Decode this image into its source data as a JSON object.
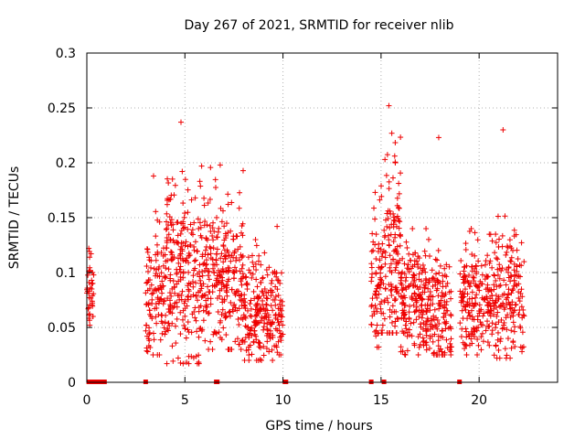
{
  "chart_data": {
    "type": "scatter",
    "title": "Day 267 of 2021, SRMTID for receiver nlib",
    "xlabel": "GPS time / hours",
    "ylabel": "SRMTID / TECUs",
    "xlim": [
      0,
      24
    ],
    "ylim": [
      0,
      0.3
    ],
    "xticks": [
      0,
      5,
      10,
      15,
      20
    ],
    "xtick_labels": [
      "0",
      "5",
      "10",
      "15",
      "20"
    ],
    "yticks": [
      0,
      0.05,
      0.1,
      0.15,
      0.2,
      0.25,
      0.3
    ],
    "ytick_labels": [
      "0",
      "0.05",
      "0.1",
      "0.15",
      "0.2",
      "0.25",
      "0.3"
    ],
    "grid": true,
    "marker": "+",
    "series_color": "#ee0000",
    "series": [
      {
        "name": "SRMTID",
        "clusters": [
          {
            "x_range": [
              0.0,
              0.25
            ],
            "y_mean": 0.085,
            "y_spread": 0.015,
            "count": 28,
            "max": 0.122,
            "min": 0.052
          },
          {
            "x_range": [
              0.25,
              0.35
            ],
            "y_mean": 0.078,
            "y_spread": 0.012,
            "count": 10,
            "max": 0.1,
            "min": 0.06
          },
          {
            "x_range": [
              3.0,
              4.0
            ],
            "y_mean": 0.08,
            "y_spread": 0.03,
            "count": 110,
            "max": 0.188,
            "min": 0.025
          },
          {
            "x_range": [
              4.0,
              6.0
            ],
            "y_mean": 0.1,
            "y_spread": 0.04,
            "count": 260,
            "max": 0.237,
            "min": 0.017
          },
          {
            "x_range": [
              6.0,
              8.0
            ],
            "y_mean": 0.1,
            "y_spread": 0.035,
            "count": 250,
            "max": 0.198,
            "min": 0.03
          },
          {
            "x_range": [
              8.0,
              9.5
            ],
            "y_mean": 0.065,
            "y_spread": 0.025,
            "count": 180,
            "max": 0.13,
            "min": 0.02
          },
          {
            "x_range": [
              9.5,
              10.0
            ],
            "y_mean": 0.06,
            "y_spread": 0.02,
            "count": 50,
            "max": 0.142,
            "min": 0.025
          },
          {
            "x_range": [
              14.5,
              15.0
            ],
            "y_mean": 0.09,
            "y_spread": 0.03,
            "count": 60,
            "max": 0.173,
            "min": 0.032
          },
          {
            "x_range": [
              15.0,
              16.0
            ],
            "y_mean": 0.12,
            "y_spread": 0.045,
            "count": 140,
            "max": 0.252,
            "min": 0.045
          },
          {
            "x_range": [
              16.0,
              17.5
            ],
            "y_mean": 0.075,
            "y_spread": 0.025,
            "count": 200,
            "max": 0.14,
            "min": 0.025
          },
          {
            "x_range": [
              17.5,
              18.6
            ],
            "y_mean": 0.065,
            "y_spread": 0.025,
            "count": 120,
            "max": 0.223,
            "min": 0.025
          },
          {
            "x_range": [
              19.0,
              20.5
            ],
            "y_mean": 0.075,
            "y_spread": 0.025,
            "count": 170,
            "max": 0.14,
            "min": 0.025
          },
          {
            "x_range": [
              20.5,
              22.3
            ],
            "y_mean": 0.08,
            "y_spread": 0.03,
            "count": 200,
            "max": 0.23,
            "min": 0.022
          }
        ],
        "zero_value_times": [
          0.1,
          0.3,
          0.5,
          0.7,
          0.9,
          3.0,
          6.6,
          6.65,
          10.1,
          10.15,
          14.5,
          15.15,
          19.0
        ]
      }
    ]
  }
}
